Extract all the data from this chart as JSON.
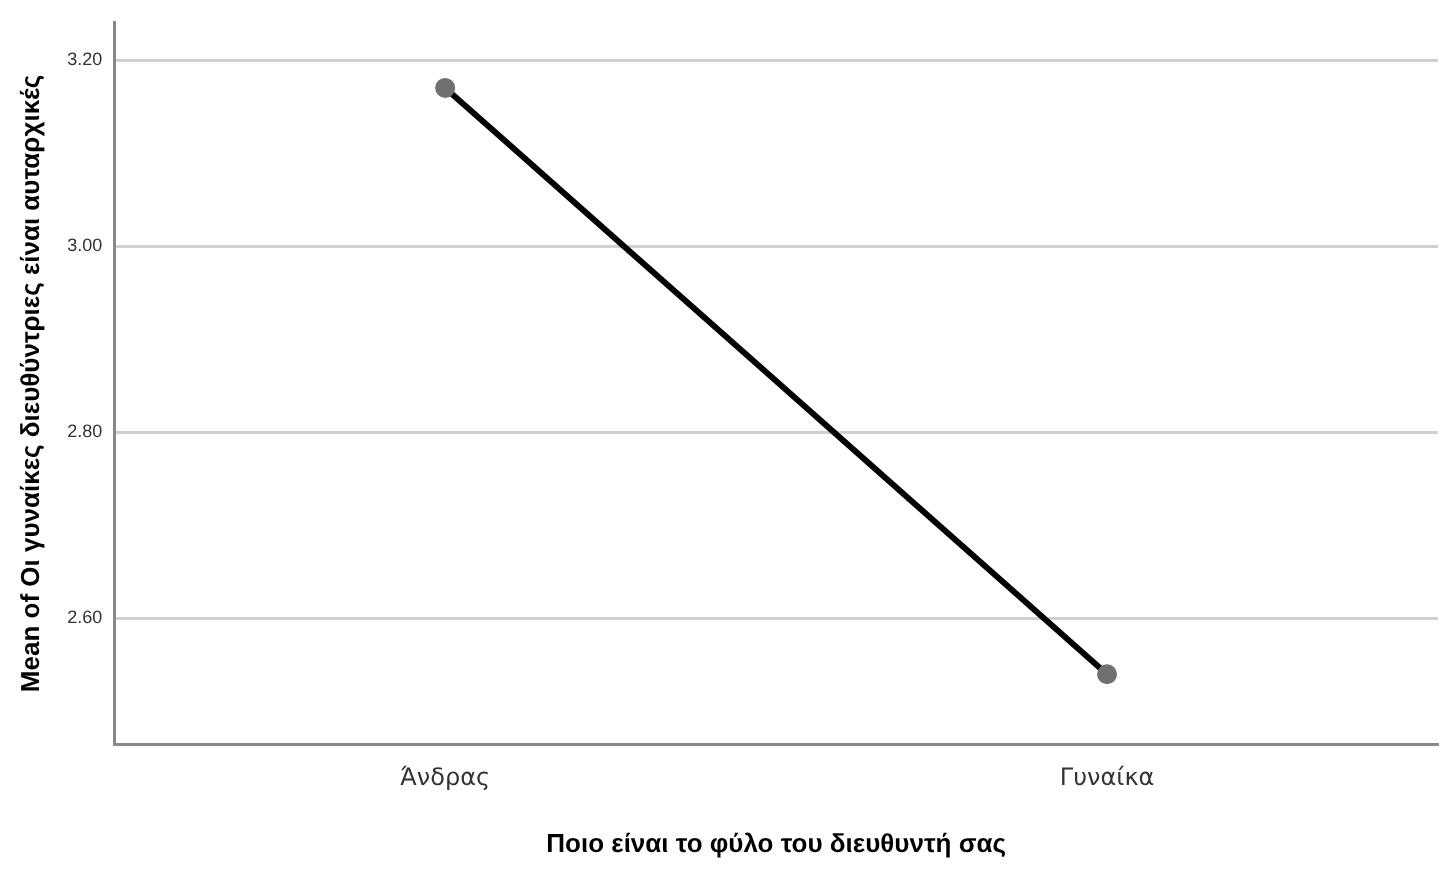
{
  "chart_data": {
    "type": "line",
    "xlabel": "Ποιο είναι το φύλο του διευθυντή σας",
    "ylabel": "Mean of Οι γυναίκες διευθύντριες είναι αυταρχικές",
    "categories": [
      "Άνδρας",
      "Γυναίκα"
    ],
    "series": [
      {
        "color": "#000000",
        "values": [
          3.17,
          2.54
        ]
      }
    ],
    "ylim": [
      2.465,
      3.24
    ],
    "yticks": [
      {
        "value": 2.6,
        "label": "2.60"
      },
      {
        "value": 2.8,
        "label": "2.80"
      },
      {
        "value": 3.0,
        "label": "3.00"
      },
      {
        "value": 3.2,
        "label": "3.20"
      }
    ],
    "grid": "y",
    "legend": false,
    "marker": "circle",
    "line_style": "solid"
  }
}
